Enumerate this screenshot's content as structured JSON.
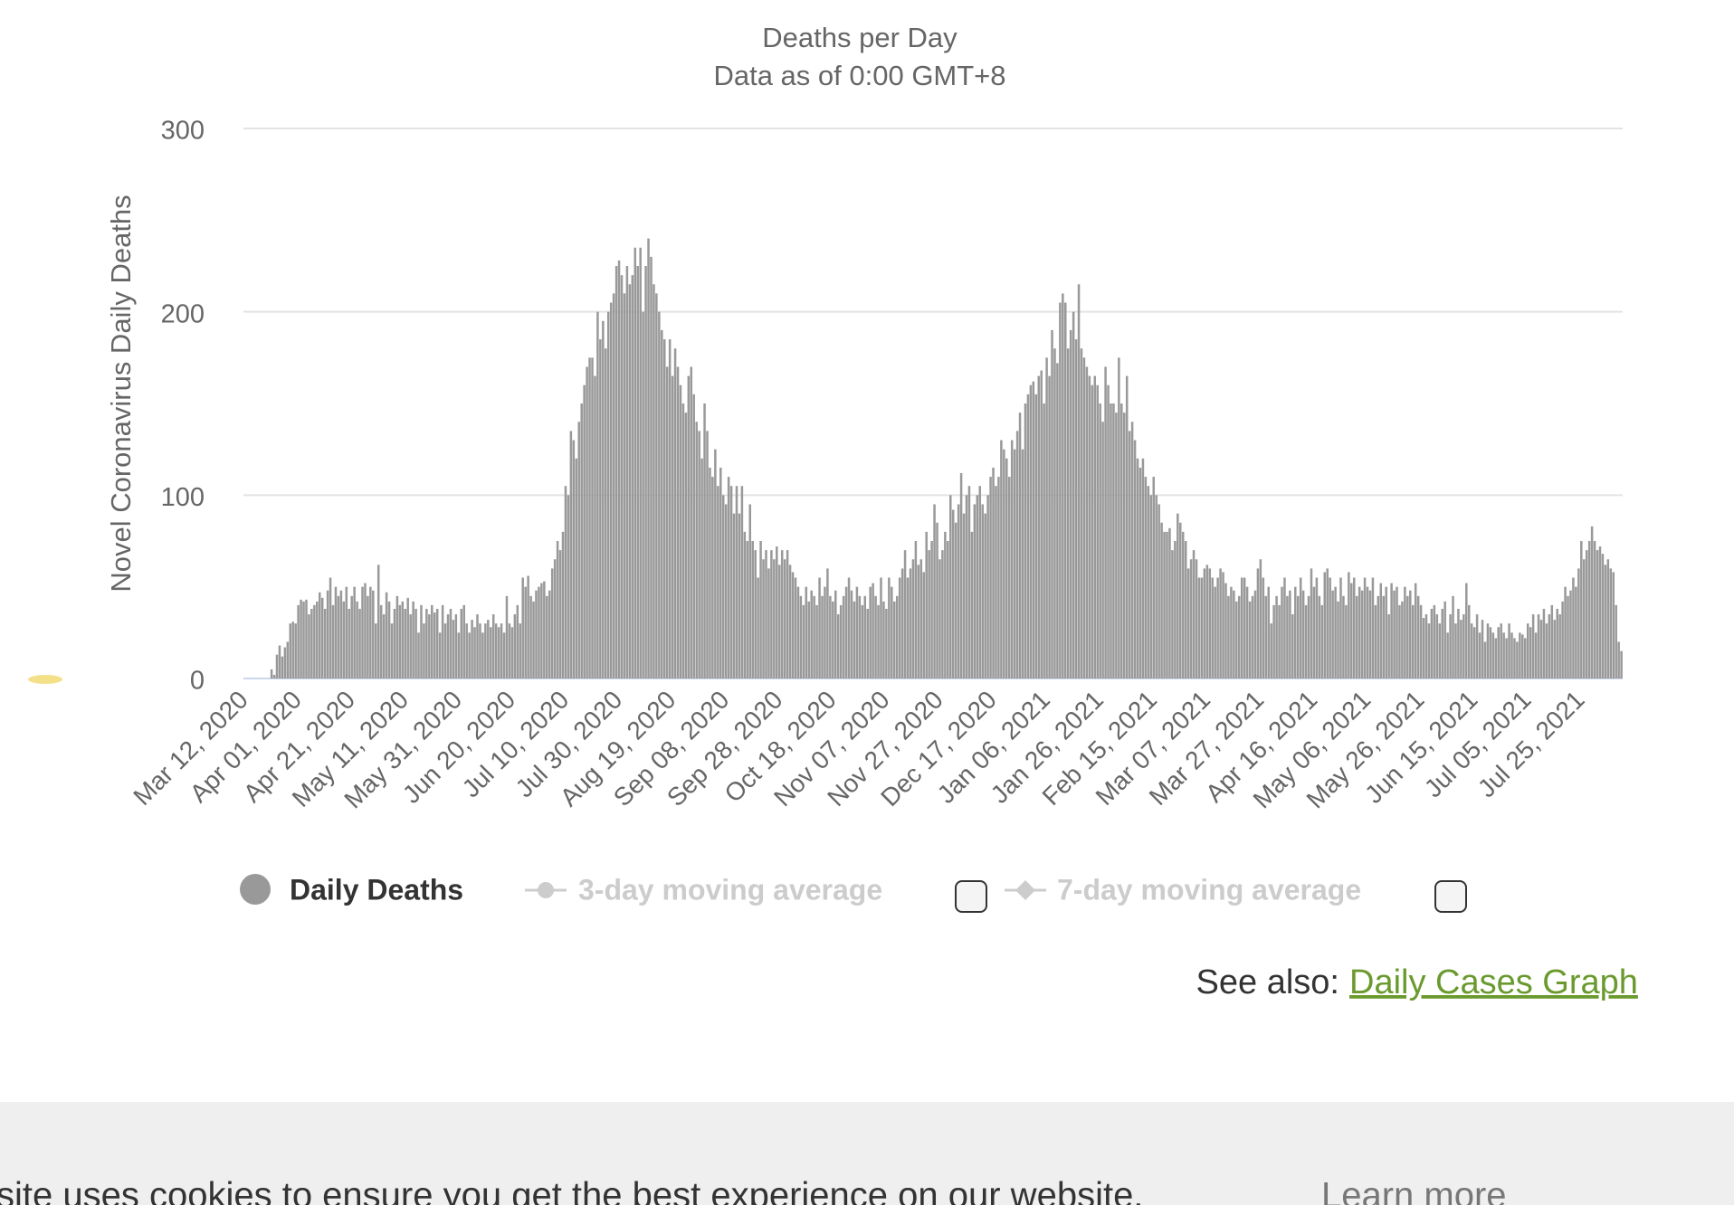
{
  "chart_data": {
    "type": "bar",
    "subtitle": "Deaths per Day",
    "subtitle2": "Data as of 0:00 GMT+8",
    "ylabel": "Novel Coronavirus Daily Deaths",
    "ylim": [
      0,
      300
    ],
    "yticks": [
      0,
      100,
      200,
      300
    ],
    "grid": true,
    "categories": [
      "Mar 12, 2020",
      null,
      null,
      null,
      null,
      null,
      null,
      null,
      null,
      null,
      null,
      null,
      null,
      null,
      null,
      null,
      null,
      null,
      null,
      null,
      "Apr 01, 2020",
      null,
      null,
      null,
      null,
      null,
      null,
      null,
      null,
      null,
      null,
      null,
      null,
      null,
      null,
      null,
      null,
      null,
      null,
      null,
      "Apr 21, 2020",
      null,
      null,
      null,
      null,
      null,
      null,
      null,
      null,
      null,
      null,
      null,
      null,
      null,
      null,
      null,
      null,
      null,
      null,
      null,
      "May 11, 2020",
      null,
      null,
      null,
      null,
      null,
      null,
      null,
      null,
      null,
      null,
      null,
      null,
      null,
      null,
      null,
      null,
      null,
      null,
      null,
      "May 31, 2020",
      null,
      null,
      null,
      null,
      null,
      null,
      null,
      null,
      null,
      null,
      null,
      null,
      null,
      null,
      null,
      null,
      null,
      null,
      null,
      "Jun 20, 2020",
      null,
      null,
      null,
      null,
      null,
      null,
      null,
      null,
      null,
      null,
      null,
      null,
      null,
      null,
      null,
      null,
      null,
      null,
      null,
      "Jul 10, 2020",
      null,
      null,
      null,
      null,
      null,
      null,
      null,
      null,
      null,
      null,
      null,
      null,
      null,
      null,
      null,
      null,
      null,
      null,
      null,
      "Jul 30, 2020",
      null,
      null,
      null,
      null,
      null,
      null,
      null,
      null,
      null,
      null,
      null,
      null,
      null,
      null,
      null,
      null,
      null,
      null,
      null,
      "Aug 19, 2020",
      null,
      null,
      null,
      null,
      null,
      null,
      null,
      null,
      null,
      null,
      null,
      null,
      null,
      null,
      null,
      null,
      null,
      null,
      null,
      "Sep 08, 2020",
      null,
      null,
      null,
      null,
      null,
      null,
      null,
      null,
      null,
      null,
      null,
      null,
      null,
      null,
      null,
      null,
      null,
      null,
      null,
      "Sep 28, 2020",
      null,
      null,
      null,
      null,
      null,
      null,
      null,
      null,
      null,
      null,
      null,
      null,
      null,
      null,
      null,
      null,
      null,
      null,
      null,
      "Oct 18, 2020",
      null,
      null,
      null,
      null,
      null,
      null,
      null,
      null,
      null,
      null,
      null,
      null,
      null,
      null,
      null,
      null,
      null,
      null,
      null,
      "Nov 07, 2020",
      null,
      null,
      null,
      null,
      null,
      null,
      null,
      null,
      null,
      null,
      null,
      null,
      null,
      null,
      null,
      null,
      null,
      null,
      null,
      "Nov 27, 2020",
      null,
      null,
      null,
      null,
      null,
      null,
      null,
      null,
      null,
      null,
      null,
      null,
      null,
      null,
      null,
      null,
      null,
      null,
      null,
      "Dec 17, 2020",
      null,
      null,
      null,
      null,
      null,
      null,
      null,
      null,
      null,
      null,
      null,
      null,
      null,
      null,
      null,
      null,
      null,
      null,
      null,
      "Jan 06, 2021",
      null,
      null,
      null,
      null,
      null,
      null,
      null,
      null,
      null,
      null,
      null,
      null,
      null,
      null,
      null,
      null,
      null,
      null,
      null,
      "Jan 26, 2021",
      null,
      null,
      null,
      null,
      null,
      null,
      null,
      null,
      null,
      null,
      null,
      null,
      null,
      null,
      null,
      null,
      null,
      null,
      null,
      "Feb 15, 2021",
      null,
      null,
      null,
      null,
      null,
      null,
      null,
      null,
      null,
      null,
      null,
      null,
      null,
      null,
      null,
      null,
      null,
      null,
      null,
      "Mar 07, 2021",
      null,
      null,
      null,
      null,
      null,
      null,
      null,
      null,
      null,
      null,
      null,
      null,
      null,
      null,
      null,
      null,
      null,
      null,
      null,
      "Mar 27, 2021",
      null,
      null,
      null,
      null,
      null,
      null,
      null,
      null,
      null,
      null,
      null,
      null,
      null,
      null,
      null,
      null,
      null,
      null,
      null,
      "Apr 16, 2021",
      null,
      null,
      null,
      null,
      null,
      null,
      null,
      null,
      null,
      null,
      null,
      null,
      null,
      null,
      null,
      null,
      null,
      null,
      null,
      "May 06, 2021",
      null,
      null,
      null,
      null,
      null,
      null,
      null,
      null,
      null,
      null,
      null,
      null,
      null,
      null,
      null,
      null,
      null,
      null,
      null,
      "May 26, 2021",
      null,
      null,
      null,
      null,
      null,
      null,
      null,
      null,
      null,
      null,
      null,
      null,
      null,
      null,
      null,
      null,
      null,
      null,
      null,
      "Jun 15, 2021",
      null,
      null,
      null,
      null,
      null,
      null,
      null,
      null,
      null,
      null,
      null,
      null,
      null,
      null,
      null,
      null,
      null,
      null,
      null,
      "Jul 05, 2021",
      null,
      null,
      null,
      null,
      null,
      null,
      null,
      null,
      null,
      null,
      null,
      null,
      null,
      null,
      null,
      null,
      null,
      null,
      null,
      "Jul 25, 2021",
      null,
      null,
      null,
      null,
      null,
      null,
      null,
      null,
      null,
      null,
      null,
      null,
      null,
      null,
      null
    ],
    "series": [
      {
        "name": "Daily Deaths",
        "color": "#999999",
        "values": [
          0,
          0,
          0,
          0,
          0,
          0,
          0,
          0,
          0,
          0,
          5,
          2,
          13,
          18,
          12,
          17,
          20,
          30,
          31,
          30,
          40,
          43,
          42,
          43,
          35,
          38,
          40,
          42,
          47,
          44,
          38,
          48,
          55,
          40,
          50,
          45,
          48,
          42,
          50,
          38,
          45,
          50,
          42,
          38,
          50,
          52,
          45,
          50,
          48,
          30,
          62,
          40,
          35,
          47,
          42,
          30,
          38,
          45,
          40,
          42,
          38,
          44,
          35,
          42,
          38,
          25,
          40,
          30,
          38,
          35,
          40,
          36,
          38,
          25,
          40,
          30,
          35,
          38,
          32,
          35,
          25,
          38,
          40,
          30,
          25,
          32,
          28,
          35,
          30,
          25,
          30,
          32,
          28,
          35,
          30,
          28,
          30,
          25,
          45,
          30,
          28,
          35,
          40,
          30,
          55,
          50,
          56,
          45,
          42,
          48,
          50,
          52,
          53,
          45,
          48,
          60,
          65,
          75,
          70,
          80,
          105,
          100,
          135,
          130,
          120,
          140,
          150,
          160,
          170,
          175,
          175,
          165,
          200,
          185,
          195,
          180,
          200,
          205,
          210,
          225,
          228,
          220,
          210,
          225,
          215,
          220,
          235,
          225,
          235,
          200,
          225,
          240,
          230,
          215,
          210,
          200,
          190,
          185,
          170,
          185,
          165,
          180,
          170,
          160,
          150,
          145,
          165,
          170,
          155,
          140,
          135,
          120,
          150,
          135,
          115,
          110,
          125,
          105,
          115,
          100,
          95,
          110,
          105,
          90,
          105,
          90,
          105,
          80,
          75,
          95,
          75,
          70,
          55,
          75,
          65,
          70,
          60,
          70,
          65,
          72,
          62,
          70,
          65,
          70,
          62,
          58,
          55,
          50,
          45,
          40,
          50,
          42,
          48,
          45,
          40,
          55,
          45,
          50,
          60,
          45,
          42,
          48,
          35,
          40,
          45,
          50,
          55,
          48,
          42,
          50,
          45,
          40,
          45,
          38,
          50,
          52,
          45,
          40,
          55,
          42,
          38,
          55,
          50,
          42,
          45,
          55,
          60,
          70,
          55,
          60,
          65,
          75,
          62,
          65,
          58,
          80,
          70,
          75,
          95,
          85,
          65,
          70,
          80,
          75,
          100,
          92,
          85,
          95,
          112,
          90,
          100,
          105,
          80,
          95,
          100,
          105,
          95,
          90,
          100,
          110,
          115,
          105,
          110,
          130,
          125,
          120,
          110,
          130,
          125,
          135,
          145,
          125,
          150,
          155,
          160,
          162,
          155,
          165,
          168,
          150,
          175,
          165,
          190,
          180,
          172,
          205,
          210,
          205,
          180,
          190,
          200,
          185,
          215,
          180,
          175,
          170,
          165,
          160,
          165,
          160,
          150,
          140,
          170,
          160,
          150,
          150,
          145,
          175,
          150,
          145,
          165,
          135,
          140,
          130,
          120,
          115,
          120,
          110,
          105,
          100,
          110,
          100,
          95,
          85,
          80,
          80,
          82,
          70,
          75,
          90,
          85,
          80,
          75,
          60,
          65,
          70,
          65,
          55,
          55,
          60,
          62,
          60,
          55,
          50,
          55,
          60,
          58,
          52,
          45,
          50,
          48,
          42,
          45,
          55,
          55,
          50,
          42,
          45,
          48,
          60,
          65,
          55,
          45,
          50,
          30,
          40,
          45,
          40,
          50,
          55,
          45,
          48,
          35,
          50,
          45,
          55,
          48,
          40,
          45,
          60,
          50,
          55,
          45,
          40,
          58,
          60,
          55,
          48,
          50,
          42,
          55,
          45,
          40,
          58,
          52,
          55,
          45,
          50,
          48,
          55,
          50,
          48,
          55,
          40,
          45,
          52,
          45,
          50,
          35,
          52,
          48,
          50,
          40,
          42,
          50,
          45,
          48,
          40,
          52,
          45,
          40,
          33,
          35,
          30,
          38,
          40,
          35,
          30,
          38,
          42,
          25,
          35,
          45,
          30,
          38,
          32,
          35,
          52,
          40,
          30,
          28,
          35,
          25,
          32,
          20,
          30,
          28,
          25,
          22,
          28,
          30,
          25,
          22,
          30,
          25,
          22,
          20,
          25,
          24,
          22,
          30,
          28,
          35,
          25,
          35,
          32,
          38,
          30,
          35,
          40,
          32,
          38,
          35,
          42,
          50,
          45,
          48,
          55,
          50,
          60,
          75,
          65,
          70,
          75,
          83,
          75,
          70,
          72,
          68,
          62,
          65,
          60,
          58,
          40,
          20,
          15
        ]
      }
    ],
    "inactive_series": [
      {
        "name": "3-day moving average",
        "color": "#cccccc"
      },
      {
        "name": "7-day moving average",
        "color": "#cccccc"
      }
    ]
  },
  "see_also": {
    "label": "See also:",
    "link": "Daily Cases Graph"
  },
  "cookie_banner": {
    "text": "site uses cookies to ensure you get the best experience on our website.",
    "link": "Learn more"
  }
}
